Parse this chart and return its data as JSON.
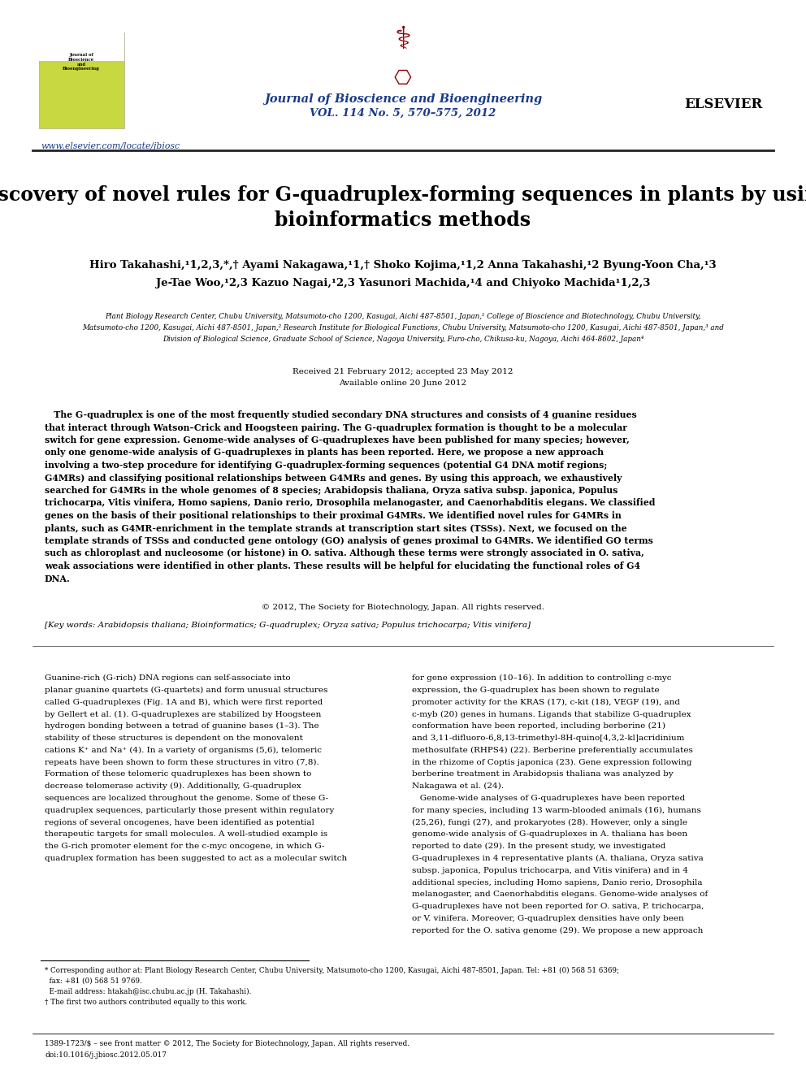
{
  "page_width": 9.92,
  "page_height": 13.23,
  "bg_color": "#ffffff",
  "journal_name": "Journal of Bioscience and Bioengineering",
  "journal_vol": "VOL. 114 No. 5, 570–575, 2012",
  "journal_color": "#1a3a8a",
  "elsevier_text": "ELSEVIER",
  "website": "www.elsevier.com/locate/jbiosc",
  "title": "Discovery of novel rules for G-quadruplex-forming sequences in plants by using\nbioinformatics methods",
  "author_line1": "Hiro Takahashi,¹1,2,3,*,† Ayami Nakagawa,¹1,† Shoko Kojima,¹1,2 Anna Takahashi,¹2 Byung-Yoon Cha,¹3",
  "author_line2": "Je-Tae Woo,¹2,3 Kazuo Nagai,¹2,3 Yasunori Machida,¹4 and Chiyoko Machida¹1,2,3",
  "aff_line1": "Plant Biology Research Center, Chubu University, Matsumoto-cho 1200, Kasugai, Aichi 487-8501, Japan,¹ College of Bioscience and Biotechnology, Chubu University,",
  "aff_line2": "Matsumoto-cho 1200, Kasugai, Aichi 487-8501, Japan,² Research Institute for Biological Functions, Chubu University, Matsumoto-cho 1200, Kasugai, Aichi 487-8501, Japan,³ and",
  "aff_line3": "Division of Biological Science, Graduate School of Science, Nagoya University, Furo-cho, Chikusa-ku, Nagoya, Aichi 464-8602, Japan⁴",
  "received": "Received 21 February 2012; accepted 23 May 2012",
  "available": "Available online 20 June 2012",
  "abstract_text": "   The G-quadruplex is one of the most frequently studied secondary DNA structures and consists of 4 guanine residues\nthat interact through Watson–Crick and Hoogsteen pairing. The G-quadruplex formation is thought to be a molecular\nswitch for gene expression. Genome-wide analyses of G-quadruplexes have been published for many species; however,\nonly one genome-wide analysis of G-quadruplexes in plants has been reported. Here, we propose a new approach\ninvolving a two-step procedure for identifying G-quadruplex-forming sequences (potential G4 DNA motif regions;\nG4MRs) and classifying positional relationships between G4MRs and genes. By using this approach, we exhaustively\nsearched for G4MRs in the whole genomes of 8 species; Arabidopsis thaliana, Oryza sativa subsp. japonica, Populus\ntrichocarpa, Vitis vinifera, Homo sapiens, Danio rerio, Drosophila melanogaster, and Caenorhabditis elegans. We classified\ngenes on the basis of their positional relationships to their proximal G4MRs. We identified novel rules for G4MRs in\nplants, such as G4MR-enrichment in the template strands at transcription start sites (TSSs). Next, we focused on the\ntemplate strands of TSSs and conducted gene ontology (GO) analysis of genes proximal to G4MRs. We identified GO terms\nsuch as chloroplast and nucleosome (or histone) in O. sativa. Although these terms were strongly associated in O. sativa,\nweak associations were identified in other plants. These results will be helpful for elucidating the functional roles of G4\nDNA.",
  "copyright": "© 2012, The Society for Biotechnology, Japan. All rights reserved.",
  "keywords": "[Key words: Arabidopsis thaliana; Bioinformatics; G-quadruplex; Oryza sativa; Populus trichocarpa; Vitis vinifera]",
  "body_col1_lines": [
    "Guanine-rich (G-rich) DNA regions can self-associate into",
    "planar guanine quartets (G-quartets) and form unusual structures",
    "called G-quadruplexes (Fig. 1A and B), which were first reported",
    "by Gellert et al. (1). G-quadruplexes are stabilized by Hoogsteen",
    "hydrogen bonding between a tetrad of guanine bases (1–3). The",
    "stability of these structures is dependent on the monovalent",
    "cations K⁺ and Na⁺ (4). In a variety of organisms (5,6), telomeric",
    "repeats have been shown to form these structures in vitro (7,8).",
    "Formation of these telomeric quadruplexes has been shown to",
    "decrease telomerase activity (9). Additionally, G-quadruplex",
    "sequences are localized throughout the genome. Some of these G-",
    "quadruplex sequences, particularly those present within regulatory",
    "regions of several oncogenes, have been identified as potential",
    "therapeutic targets for small molecules. A well-studied example is",
    "the G-rich promoter element for the c-myc oncogene, in which G-",
    "quadruplex formation has been suggested to act as a molecular switch"
  ],
  "body_col2_lines": [
    "for gene expression (10–16). In addition to controlling c-myc",
    "expression, the G-quadruplex has been shown to regulate",
    "promoter activity for the KRAS (17), c-kit (18), VEGF (19), and",
    "c-myb (20) genes in humans. Ligands that stabilize G-quadruplex",
    "conformation have been reported, including berberine (21)",
    "and 3,11-difluoro-6,8,13-trimethyl-8H-quino[4,3,2-kl]acridinium",
    "methosulfate (RHPS4) (22). Berberine preferentially accumulates",
    "in the rhizome of Coptis japonica (23). Gene expression following",
    "berberine treatment in Arabidopsis thaliana was analyzed by",
    "Nakagawa et al. (24).",
    "   Genome-wide analyses of G-quadruplexes have been reported",
    "for many species, including 13 warm-blooded animals (16), humans",
    "(25,26), fungi (27), and prokaryotes (28). However, only a single",
    "genome-wide analysis of G-quadruplexes in A. thaliana has been",
    "reported to date (29). In the present study, we investigated",
    "G-quadruplexes in 4 representative plants (A. thaliana, Oryza sativa",
    "subsp. japonica, Populus trichocarpa, and Vitis vinifera) and in 4",
    "additional species, including Homo sapiens, Danio rerio, Drosophila",
    "melanogaster, and Caenorhabditis elegans. Genome-wide analyses of",
    "G-quadruplexes have not been reported for O. sativa, P. trichocarpa,",
    "or V. vinifera. Moreover, G-quadruplex densities have only been",
    "reported for the O. sativa genome (29). We propose a new approach"
  ],
  "footnote1": "* Corresponding author at: Plant Biology Research Center, Chubu University, Matsumoto-cho 1200, Kasugai, Aichi 487-8501, Japan. Tel: +81 (0) 568 51 6369;",
  "footnote1b": "  fax: +81 (0) 568 51 9769.",
  "footnote2": "  E-mail address: htakah@isc.chubu.ac.jp (H. Takahashi).",
  "footnote3": "† The first two authors contributed equally to this work.",
  "footer_text1": "1389-1723/$ – see front matter © 2012, The Society for Biotechnology, Japan. All rights reserved.",
  "footer_text2": "doi:10.1016/j.jbiosc.2012.05.017",
  "cover_color": "#c8d840",
  "cover_text_lines": [
    "Journal of",
    "Bioscience",
    "and",
    "Bioengineering"
  ],
  "dna_color": "#8b0000",
  "separator_color": "#222222",
  "abstract_box_color": "#f5f5f5"
}
